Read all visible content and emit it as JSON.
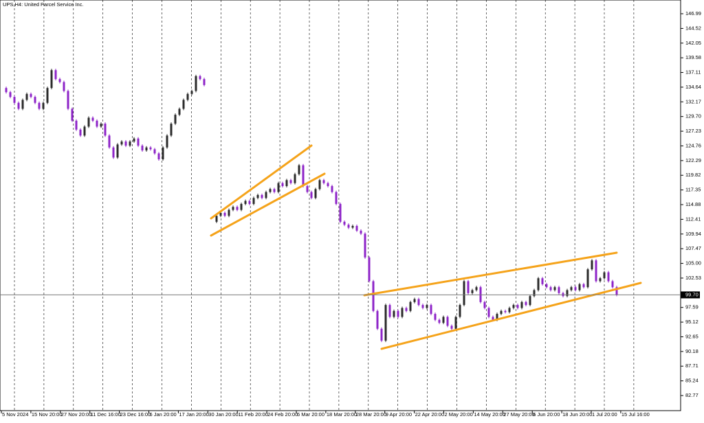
{
  "chart_data": {
    "type": "candlestick",
    "title": "UPS,H4:  United Parcel Service Inc.",
    "up_color": "#2b2b2b",
    "down_color": "#8e24c8",
    "trendline_color": "#f5a31a",
    "ylim": [
      80.23,
      149.3
    ],
    "yticks": [
      146.99,
      144.52,
      {
        "value": 142.05,
        "label": "142.05"
      },
      139.58,
      137.11,
      134.64,
      132.17,
      {
        "value": 129.7,
        "label": "129.70"
      },
      127.23,
      124.76,
      122.29,
      119.82,
      117.35,
      114.88,
      112.41,
      109.94,
      107.47,
      {
        "value": 105,
        "label": "105.00"
      },
      102.53,
      97.59,
      95.12,
      92.65,
      {
        "value": 90.18,
        "label": "90.18"
      },
      87.71,
      85.24,
      82.77
    ],
    "last_price": {
      "value": 99.7,
      "label": "99.70"
    },
    "x_labels": [
      "5 Nov 2024",
      "15 Nov 20:00",
      "27 Nov 20:00",
      "11 Dec 16:00",
      "23 Dec 16:00",
      "6 Jan 20:00",
      "17 Jan 20:00",
      "30 Jan 20:00",
      "11 Feb 20:00",
      "24 Feb 20:00",
      "6 Mar 20:00",
      "18 Mar 20:00",
      "28 Mar 20:00",
      "9 Apr 20:00",
      "22 Apr 20:00",
      "2 May 20:00",
      "14 May 20:00",
      "27 May 20:00",
      "6 Jun 20:00",
      "18 Jun 20:00",
      "1 Jul 20:00",
      "15 Jul 16:00"
    ],
    "values": [
      134.5,
      133.8,
      133,
      132,
      131,
      132.5,
      133.5,
      133,
      132,
      131,
      132,
      134.5,
      137.5,
      136,
      135.5,
      134,
      131,
      129,
      127.5,
      126.5,
      128,
      129.5,
      129,
      128,
      128.5,
      126.5,
      124.5,
      122.8,
      125,
      125.5,
      124.8,
      125.5,
      126,
      124.8,
      124,
      124.5,
      124.2,
      123.5,
      122.5,
      124.5,
      126.5,
      128.5,
      130,
      131,
      132.5,
      133.5,
      134,
      136.5,
      136,
      135,
      null,
      112,
      113,
      113.5,
      113,
      114,
      114.5,
      114,
      115,
      115.5,
      115,
      116,
      116.5,
      116,
      117,
      117.5,
      117,
      118.5,
      118,
      119,
      118.5,
      120,
      121.5,
      118,
      117,
      116,
      117.5,
      119,
      118.5,
      118,
      117,
      115,
      112,
      111.5,
      111,
      111.3,
      110.5,
      110,
      106,
      102,
      97,
      94,
      92,
      98,
      96,
      97,
      96,
      97.5,
      97,
      98.5,
      99,
      98,
      97.5,
      98,
      96.5,
      95.5,
      95,
      96,
      94.5,
      94,
      96,
      98,
      102,
      100,
      100.5,
      101,
      98.5,
      97.5,
      96,
      95.5,
      96.5,
      97,
      96.8,
      97.5,
      98,
      97.5,
      98.5,
      98,
      99.5,
      100.5,
      102.5,
      101.5,
      101,
      100.5,
      101,
      100,
      99.5,
      100.5,
      101,
      100.5,
      101.5,
      101,
      104,
      105.5,
      102,
      102.5,
      103.5,
      102,
      101,
      99.7
    ]
  }
}
